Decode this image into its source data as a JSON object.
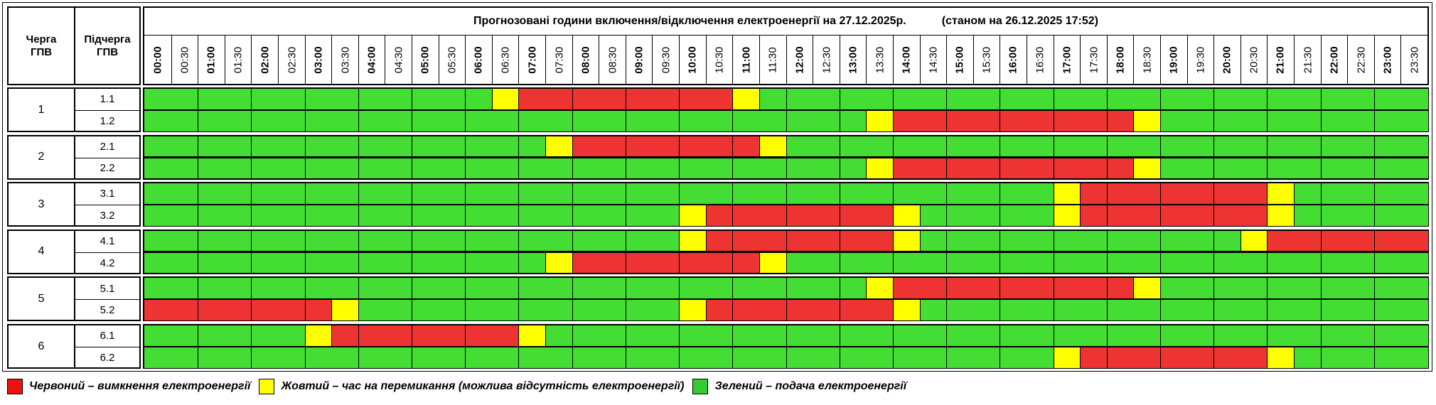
{
  "header": {
    "queue_label": "Черга ГПВ",
    "subqueue_label": "Підчерга ГПВ",
    "title": "Прогнозовані години включення/відключення електроенергії на 27.12.2025р.",
    "status": "(станом на 26.12.2025 17:52)"
  },
  "times": [
    "00:00",
    "00:30",
    "01:00",
    "01:30",
    "02:00",
    "02:30",
    "03:00",
    "03:30",
    "04:00",
    "04:30",
    "05:00",
    "05:30",
    "06:00",
    "06:30",
    "07:00",
    "07:30",
    "08:00",
    "08:30",
    "09:00",
    "09:30",
    "10:00",
    "10:30",
    "11:00",
    "11:30",
    "12:00",
    "12:30",
    "13:00",
    "13:30",
    "14:00",
    "14:30",
    "15:00",
    "15:30",
    "16:00",
    "16:30",
    "17:00",
    "17:30",
    "18:00",
    "18:30",
    "19:00",
    "19:30",
    "20:00",
    "20:30",
    "21:00",
    "21:30",
    "22:00",
    "22:30",
    "23:00",
    "23:30"
  ],
  "colors": {
    "R": "#ee3333",
    "Y": "#ffff00",
    "G": "#44dd33"
  },
  "groups": [
    {
      "queue": "1",
      "subqueues": [
        {
          "label": "1.1",
          "slots": "GGGGGGGGGGGGGYRRRRRRRRYGGGGGGGGGGGGGGGGGGGGGGGGG"
        },
        {
          "label": "1.2",
          "slots": "GGGGGGGGGGGGGGGGGGGGGGGGGGGYRRRRRRRRRYGGGGGGGGGG"
        }
      ]
    },
    {
      "queue": "2",
      "subqueues": [
        {
          "label": "2.1",
          "slots": "GGGGGGGGGGGGGGGYRRRRRRRYGGGGGGGGGGGGGGGGGGGGGGGG"
        },
        {
          "label": "2.2",
          "slots": "GGGGGGGGGGGGGGGGGGGGGGGGGGGYRRRRRRRRRYGGGGGGGGGG"
        }
      ]
    },
    {
      "queue": "3",
      "subqueues": [
        {
          "label": "3.1",
          "slots": "GGGGGGGGGGGGGGGGGGGGGGGGGGGGGGGGGGYRRRRRRRYGGGGG"
        },
        {
          "label": "3.2",
          "slots": "GGGGGGGGGGGGGGGGGGGGYRRRRRRRYGGGGGYRRRRRRRYGGGGG"
        }
      ]
    },
    {
      "queue": "4",
      "subqueues": [
        {
          "label": "4.1",
          "slots": "GGGGGGGGGGGGGGGGGGGGYRRRRRRRYGGGGGGGGGGGGYRRRRRR"
        },
        {
          "label": "4.2",
          "slots": "GGGGGGGGGGGGGGGYRRRRRRRYGGGGGGGGGGGGGGGGGGGGGGGG"
        }
      ]
    },
    {
      "queue": "5",
      "subqueues": [
        {
          "label": "5.1",
          "slots": "GGGGGGGGGGGGGGGGGGGGGGGGGGGYRRRRRRRRRYGGGGGGGGGG"
        },
        {
          "label": "5.2",
          "slots": "RRRRRRRYGGGGGGGGGGGGYRRRRRRRYGGGGGGGGGGGGGGGGGGG"
        }
      ]
    },
    {
      "queue": "6",
      "subqueues": [
        {
          "label": "6.1",
          "slots": "GGGGGGYRRRRRRRYGGGGGGGGGGGGGGGGGGGGGGGGGGGGGGGGG"
        },
        {
          "label": "6.2",
          "slots": "GGGGGGGGGGGGGGGGGGGGGGGGGGGGGGGGGGYRRRRRRRYGGGGG"
        }
      ]
    }
  ],
  "legend": [
    {
      "key": "R",
      "color": "#ee1111",
      "text": "Червоний – вимкнення електроенергії"
    },
    {
      "key": "Y",
      "color": "#ffff00",
      "text": "Жовтий – час на перемикання (можлива відсутність електроенергії)"
    },
    {
      "key": "G",
      "color": "#33cc33",
      "text": "Зелений – подача електроенергії"
    }
  ]
}
